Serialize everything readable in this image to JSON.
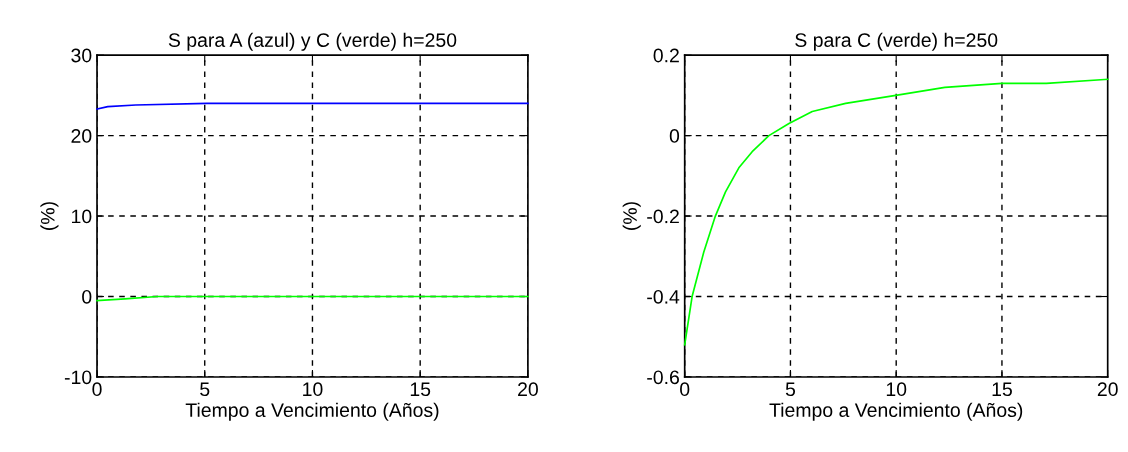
{
  "chart_data": [
    {
      "type": "line",
      "title": "S para A (azul) y C (verde) h=250",
      "xlabel": "Tiempo a Vencimiento (Años)",
      "ylabel": "(%)",
      "xlim": [
        0,
        20
      ],
      "ylim": [
        -10,
        30
      ],
      "xticks": [
        0,
        5,
        10,
        15,
        20
      ],
      "yticks": [
        -10,
        0,
        10,
        20,
        30
      ],
      "grid": true,
      "line_style": "solid",
      "series": [
        {
          "color": "#0000ff",
          "x": [
            0,
            0.5,
            1.8,
            5.1,
            10,
            15,
            20
          ],
          "values": [
            23.3,
            23.6,
            23.8,
            24.0,
            24.0,
            24.0,
            24.0
          ]
        },
        {
          "color": "#00ff00",
          "x": [
            0,
            1.3,
            2.8,
            20
          ],
          "values": [
            -0.5,
            -0.3,
            0,
            0
          ]
        }
      ]
    },
    {
      "type": "line",
      "title": "S para C (verde) h=250",
      "xlabel": "Tiempo a Vencimiento (Años)",
      "ylabel": "(%)",
      "xlim": [
        0,
        20
      ],
      "ylim": [
        -0.6,
        0.2
      ],
      "xticks": [
        0,
        5,
        10,
        15,
        20
      ],
      "yticks": [
        -0.6,
        -0.4,
        -0.2,
        0,
        0.2
      ],
      "grid": true,
      "line_style": "solid",
      "series": [
        {
          "color": "#00ff00",
          "x": [
            0,
            0.35,
            0.9,
            1.45,
            1.93,
            2.56,
            3.19,
            3.98,
            4.93,
            6.03,
            7.61,
            9.98,
            12.3,
            15.0,
            17.1,
            20
          ],
          "values": [
            -0.52,
            -0.4,
            -0.29,
            -0.2,
            -0.14,
            -0.08,
            -0.04,
            0.0,
            0.03,
            0.06,
            0.08,
            0.1,
            0.12,
            0.13,
            0.13,
            0.14
          ]
        }
      ]
    }
  ]
}
